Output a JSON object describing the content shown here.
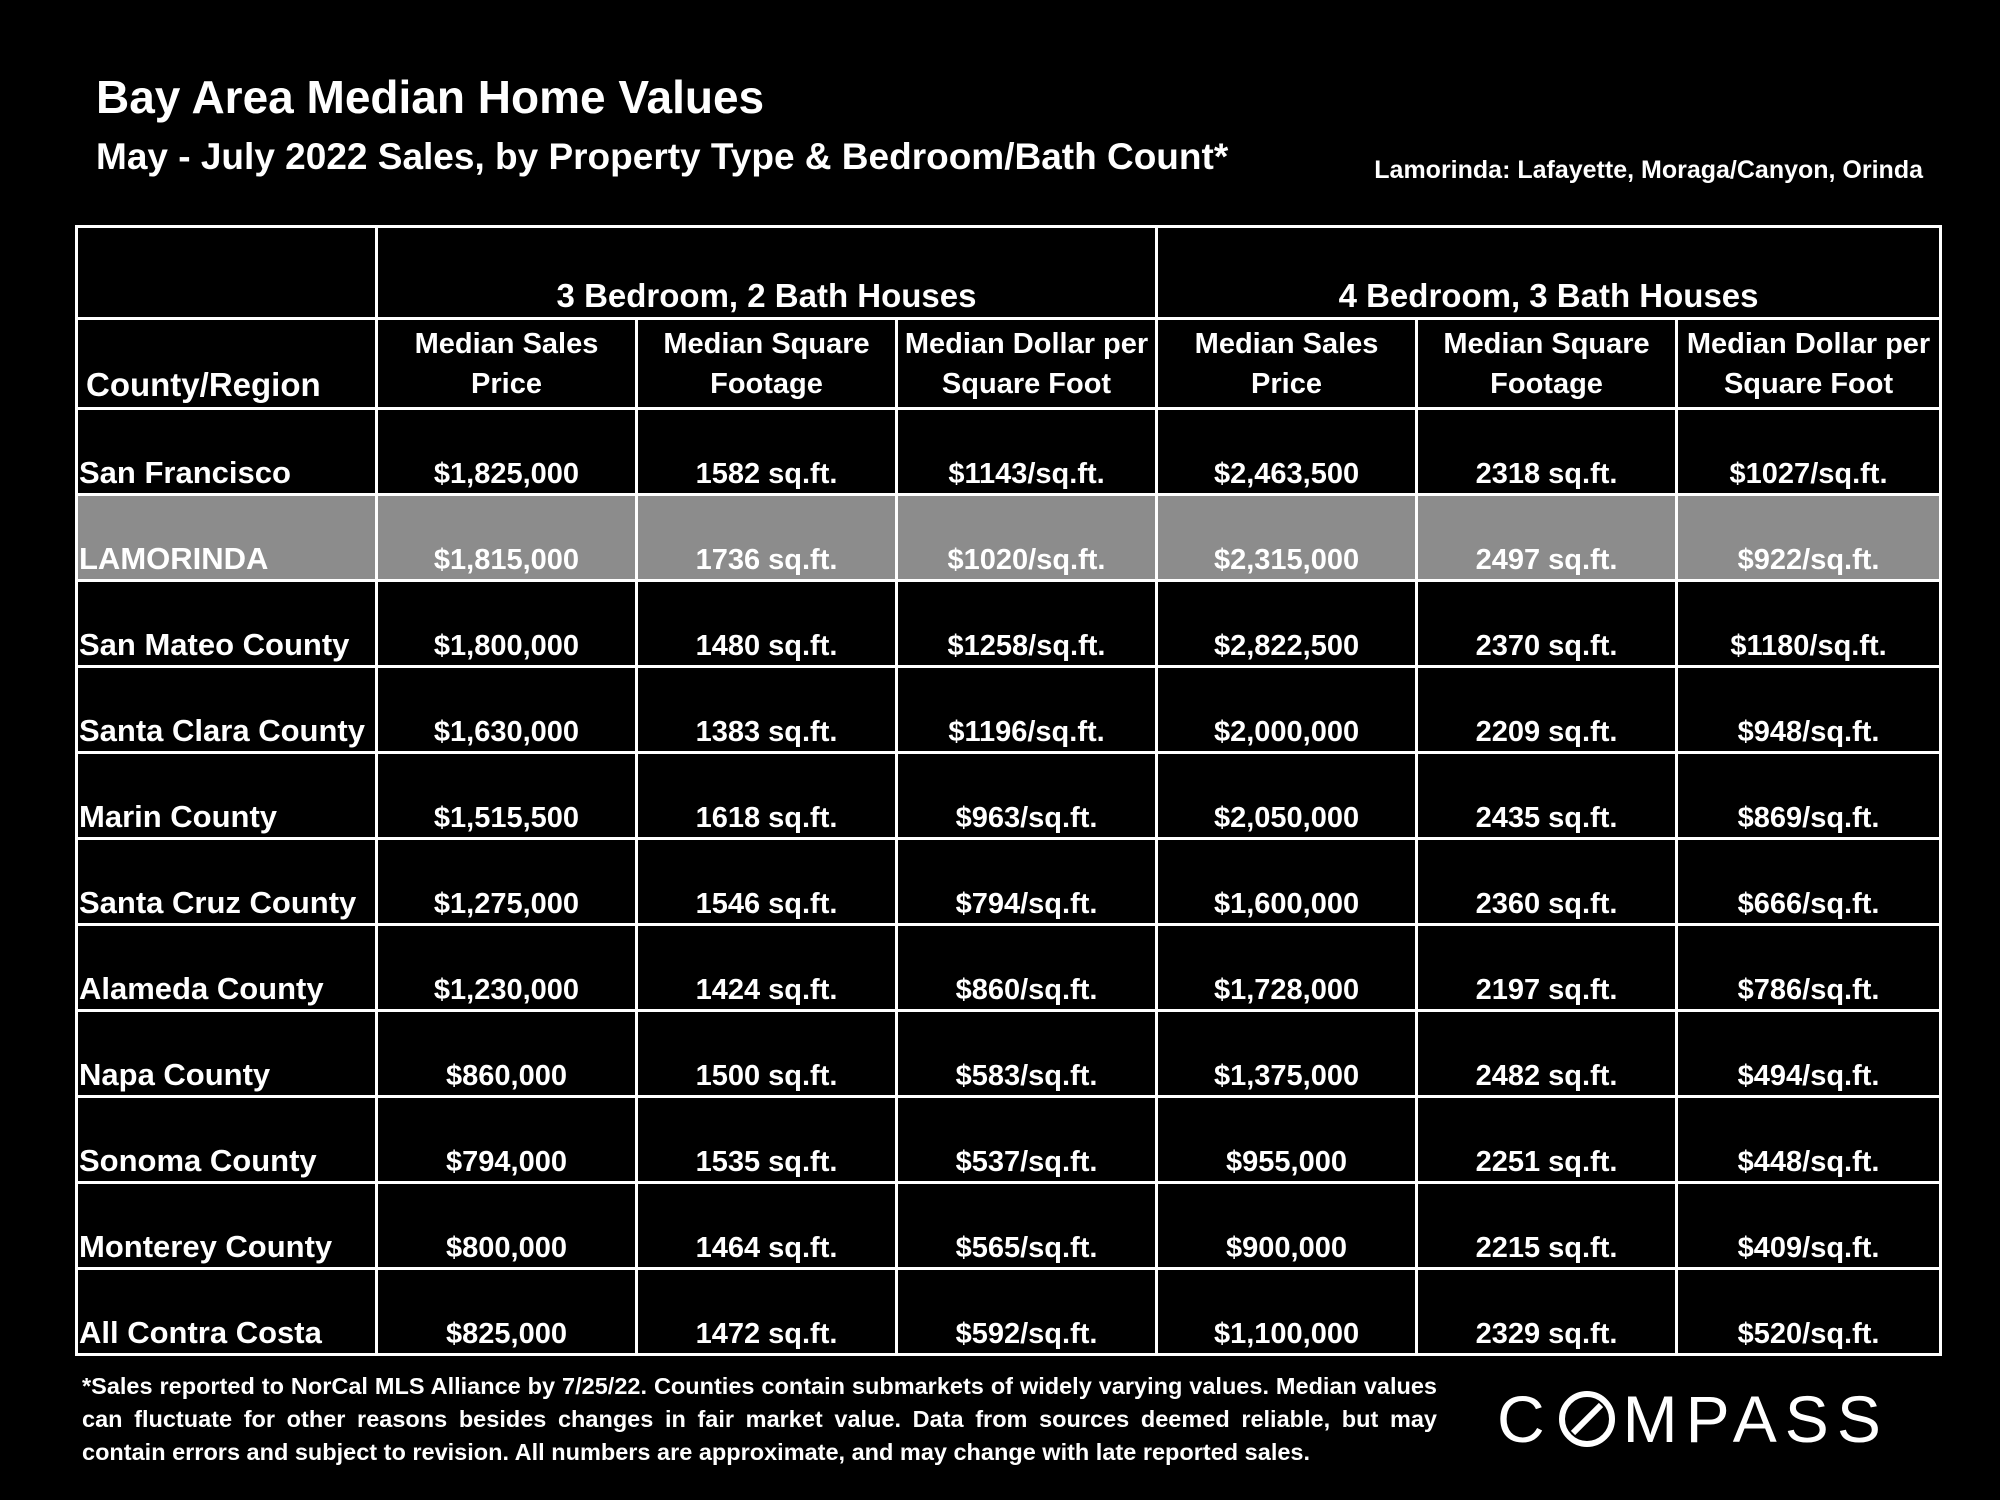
{
  "title": "Bay Area Median Home Values",
  "subtitle": "May - July 2022 Sales, by Property Type & Bedroom/Bath Count*",
  "region_note": "Lamorinda: Lafayette, Moraga/Canyon, Orinda",
  "footnote": "*Sales reported to NorCal MLS Alliance by 7/25/22. Counties contain submarkets of widely varying values. Median values can fluctuate for other reasons besides changes in fair market value. Data from sources deemed reliable, but may contain errors and subject to revision.  All numbers are approximate, and may change with late reported sales.",
  "logo": {
    "left": "C",
    "right": "MPASS",
    "full": "COMPASS"
  },
  "colors": {
    "background": "#000000",
    "text": "#ffffff",
    "highlight_row": "#8c8c8c"
  },
  "chart_data": {
    "type": "table",
    "groups": [
      "3 Bedroom, 2 Bath Houses",
      "4 Bedroom, 3 Bath Houses"
    ],
    "region_header": "County/Region",
    "column_headers": [
      "Median Sales Price",
      "Median Square Footage",
      "Median Dollar per Square Foot",
      "Median Sales Price",
      "Median Square Footage",
      "Median Dollar per Square Foot"
    ],
    "highlighted_row": "LAMORINDA",
    "rows": [
      {
        "region": "San Francisco",
        "values": [
          "$1,825,000",
          "1582 sq.ft.",
          "$1143/sq.ft.",
          "$2,463,500",
          "2318 sq.ft.",
          "$1027/sq.ft."
        ]
      },
      {
        "region": "LAMORINDA",
        "values": [
          "$1,815,000",
          "1736 sq.ft.",
          "$1020/sq.ft.",
          "$2,315,000",
          "2497 sq.ft.",
          "$922/sq.ft."
        ]
      },
      {
        "region": "San Mateo County",
        "values": [
          "$1,800,000",
          "1480 sq.ft.",
          "$1258/sq.ft.",
          "$2,822,500",
          "2370 sq.ft.",
          "$1180/sq.ft."
        ]
      },
      {
        "region": "Santa Clara County",
        "values": [
          "$1,630,000",
          "1383 sq.ft.",
          "$1196/sq.ft.",
          "$2,000,000",
          "2209 sq.ft.",
          "$948/sq.ft."
        ]
      },
      {
        "region": "Marin County",
        "values": [
          "$1,515,500",
          "1618 sq.ft.",
          "$963/sq.ft.",
          "$2,050,000",
          "2435 sq.ft.",
          "$869/sq.ft."
        ]
      },
      {
        "region": "Santa Cruz County",
        "values": [
          "$1,275,000",
          "1546 sq.ft.",
          "$794/sq.ft.",
          "$1,600,000",
          "2360 sq.ft.",
          "$666/sq.ft."
        ]
      },
      {
        "region": "Alameda County",
        "values": [
          "$1,230,000",
          "1424 sq.ft.",
          "$860/sq.ft.",
          "$1,728,000",
          "2197 sq.ft.",
          "$786/sq.ft."
        ]
      },
      {
        "region": "Napa County",
        "values": [
          "$860,000",
          "1500 sq.ft.",
          "$583/sq.ft.",
          "$1,375,000",
          "2482 sq.ft.",
          "$494/sq.ft."
        ]
      },
      {
        "region": "Sonoma County",
        "values": [
          "$794,000",
          "1535 sq.ft.",
          "$537/sq.ft.",
          "$955,000",
          "2251 sq.ft.",
          "$448/sq.ft."
        ]
      },
      {
        "region": "Monterey County",
        "values": [
          "$800,000",
          "1464 sq.ft.",
          "$565/sq.ft.",
          "$900,000",
          "2215 sq.ft.",
          "$409/sq.ft."
        ]
      },
      {
        "region": "All Contra Costa",
        "values": [
          "$825,000",
          "1472 sq.ft.",
          "$592/sq.ft.",
          "$1,100,000",
          "2329 sq.ft.",
          "$520/sq.ft."
        ]
      }
    ]
  }
}
